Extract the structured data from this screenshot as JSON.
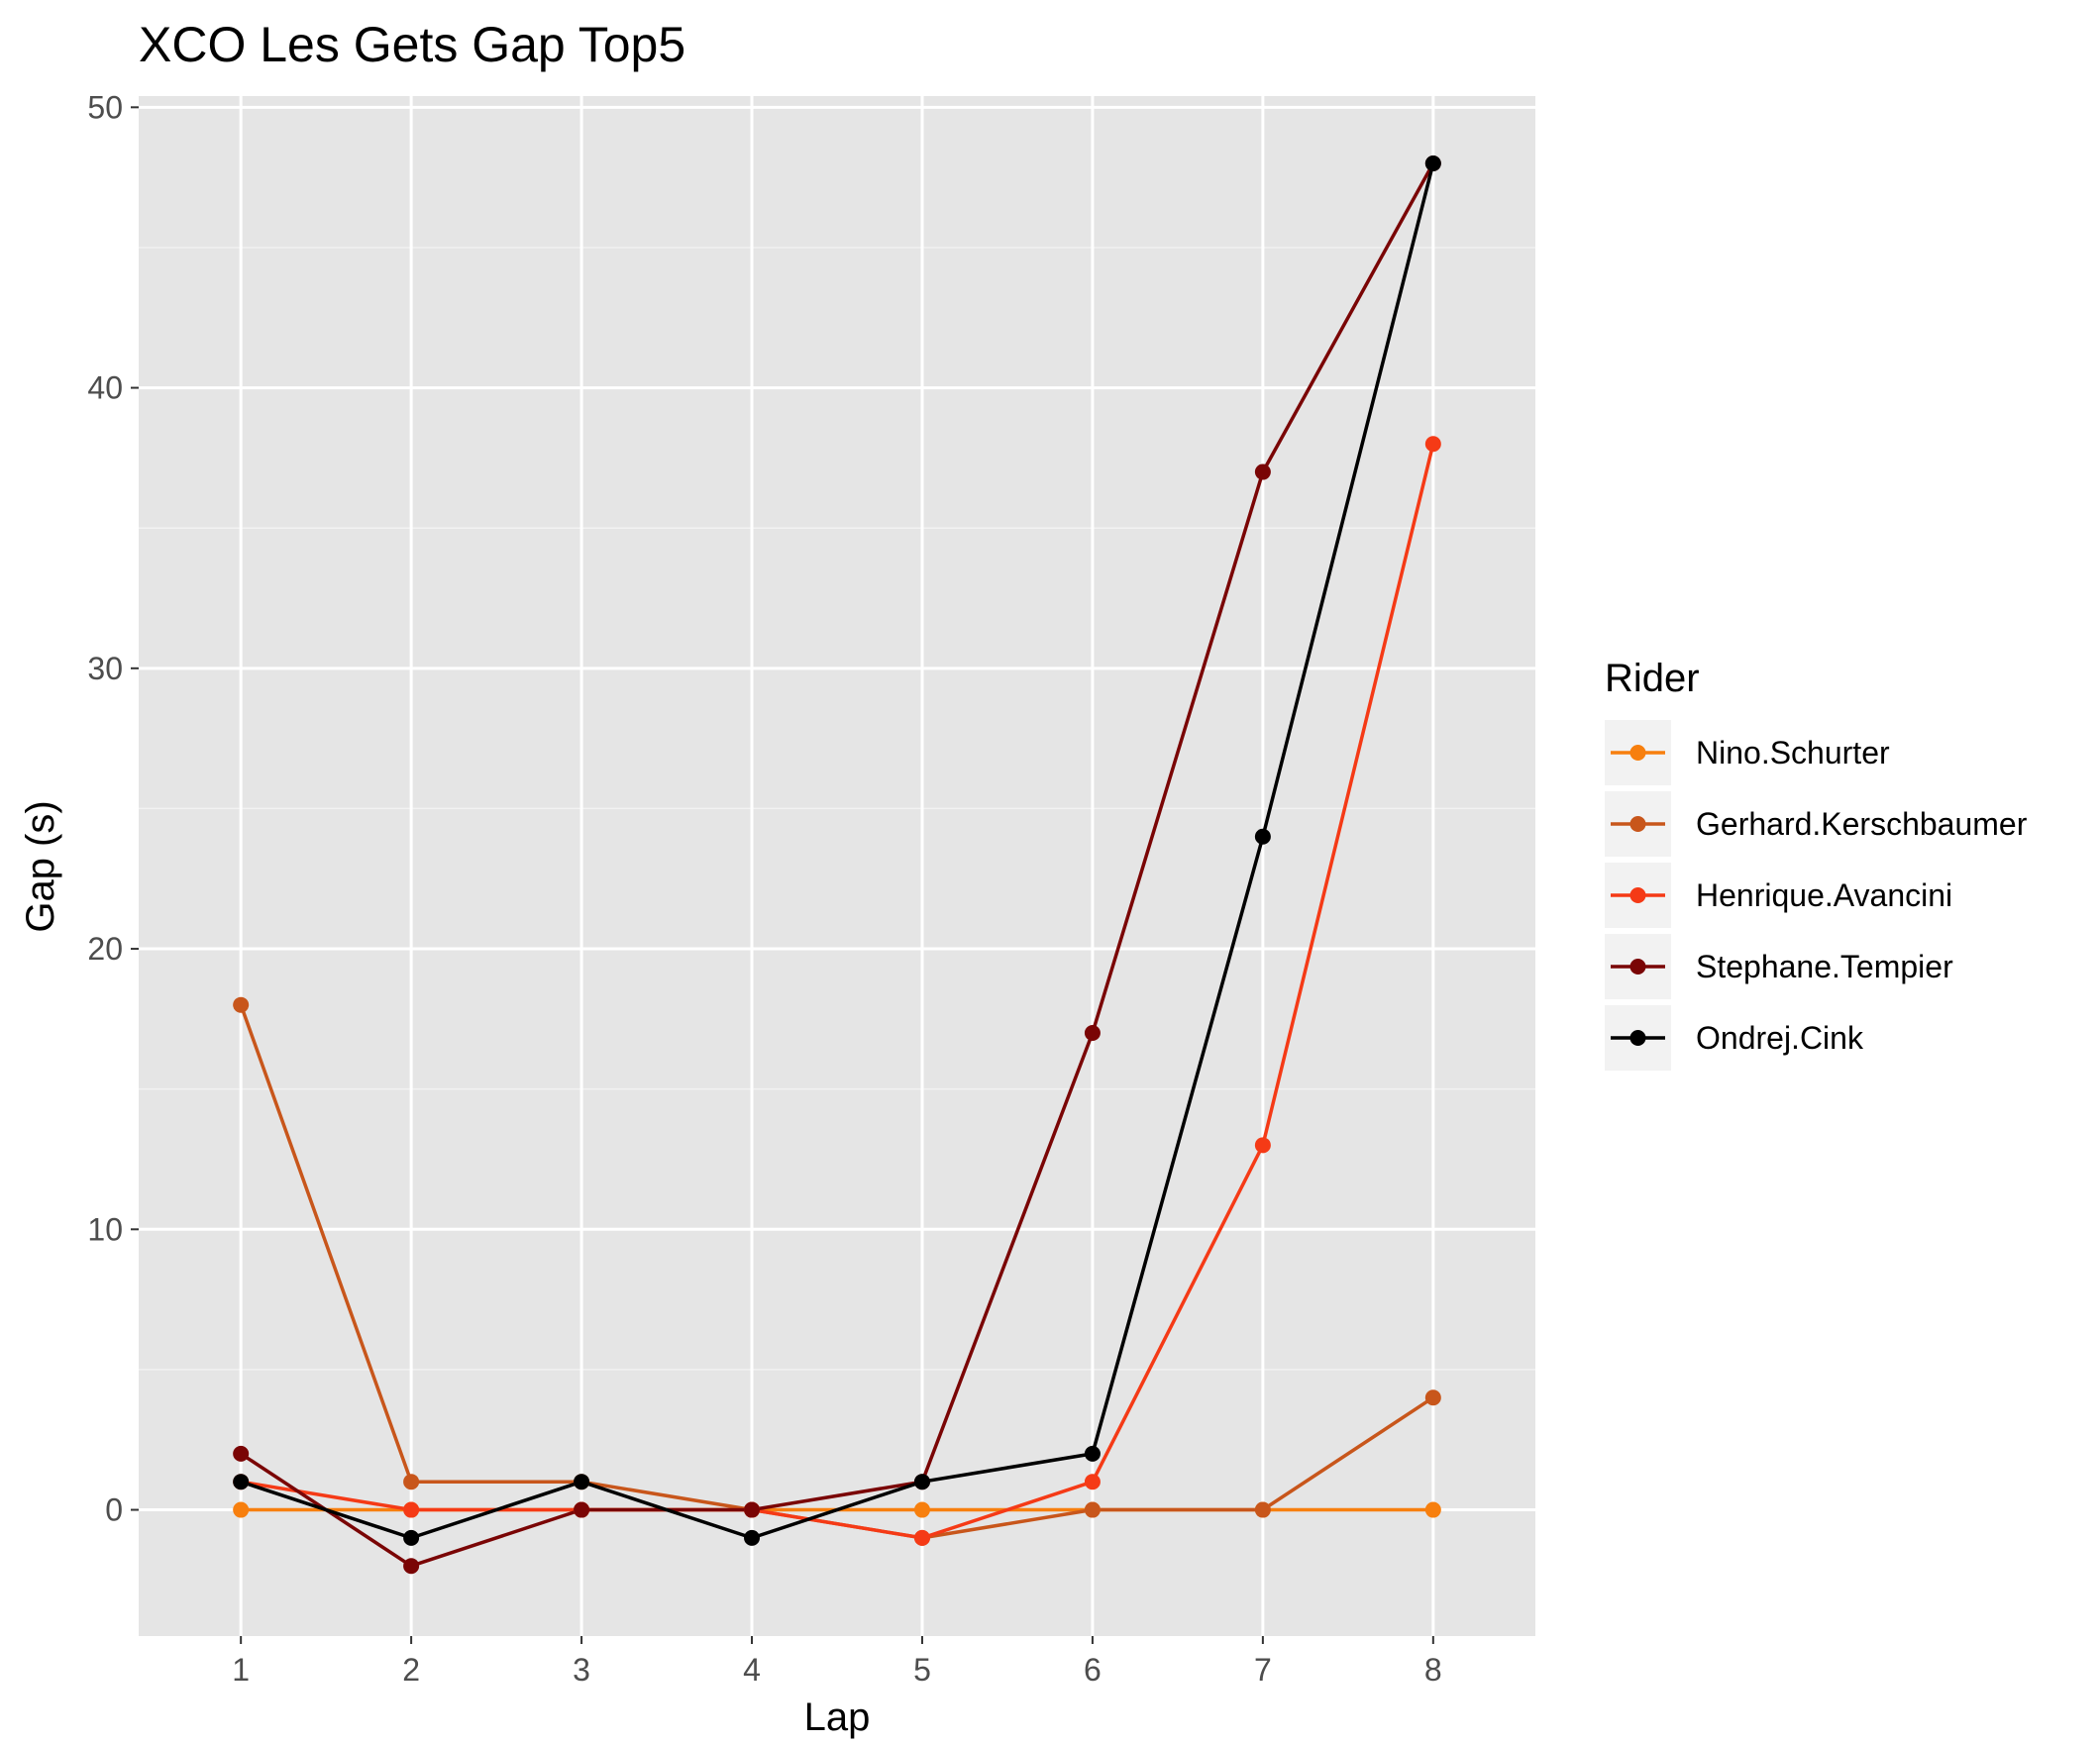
{
  "chart_data": {
    "type": "line",
    "title": "XCO Les Gets Gap Top5",
    "xlabel": "Lap",
    "ylabel": "Gap (s)",
    "x": [
      1,
      2,
      3,
      4,
      5,
      6,
      7,
      8
    ],
    "x_ticks": [
      "1",
      "2",
      "3",
      "4",
      "5",
      "6",
      "7",
      "8"
    ],
    "y_ticks": [
      "0",
      "10",
      "20",
      "30",
      "40",
      "50"
    ],
    "xlim": [
      0.4,
      8.6
    ],
    "ylim": [
      -4.5,
      50.4
    ],
    "grid": true,
    "legend_title": "Rider",
    "legend_position": "right",
    "series": [
      {
        "name": "Nino.Schurter",
        "color": "#F77F0E",
        "values": [
          0,
          0,
          0,
          0,
          0,
          0,
          0,
          0
        ]
      },
      {
        "name": "Gerhard.Kerschbaumer",
        "color": "#C8561B",
        "values": [
          18,
          1,
          1,
          0,
          -1,
          0,
          0,
          4
        ]
      },
      {
        "name": "Henrique.Avancini",
        "color": "#F53A16",
        "values": [
          1,
          0,
          0,
          0,
          -1,
          1,
          13,
          38
        ]
      },
      {
        "name": "Stephane.Tempier",
        "color": "#7A0505",
        "values": [
          2,
          -2,
          0,
          0,
          1,
          17,
          37,
          48
        ]
      },
      {
        "name": "Ondrej.Cink",
        "color": "#000000",
        "values": [
          1,
          -1,
          1,
          -1,
          1,
          2,
          24,
          48
        ]
      }
    ]
  }
}
